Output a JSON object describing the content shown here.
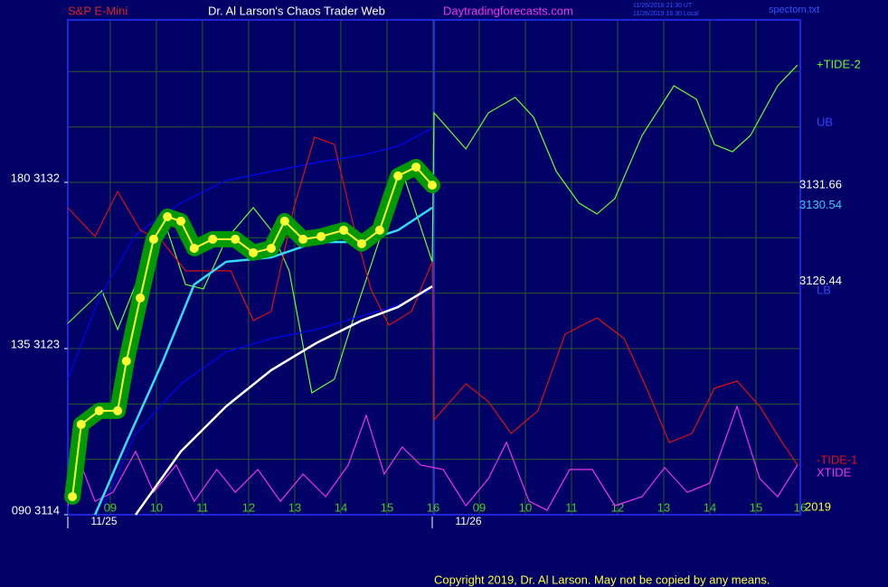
{
  "chart_data": {
    "type": "line",
    "header": {
      "symbol": "S&P E-Mini",
      "title": "Dr. Al Larson's Chaos Trader Web",
      "site": "Daytradingforecasts.com",
      "time_ut": "11/26/2019 21:30 UT",
      "time_local": "11/26/2019 16:30 Local",
      "file": "spectom.txt"
    },
    "footer": "Copyright 2019, Dr. Al Larson. May not be copied by any means.",
    "year": "2019",
    "dates": [
      "11/25",
      "11/26"
    ],
    "xlim": [
      -0.92,
      14.96
    ],
    "xticks": [
      {
        "value": 0,
        "label": "09"
      },
      {
        "value": 1,
        "label": "10"
      },
      {
        "value": 2,
        "label": "11"
      },
      {
        "value": 3,
        "label": "12"
      },
      {
        "value": 4,
        "label": "13"
      },
      {
        "value": 5,
        "label": "14"
      },
      {
        "value": 6,
        "label": "15"
      },
      {
        "value": 7,
        "label": "16"
      },
      {
        "value": 8,
        "label": "09"
      },
      {
        "value": 9,
        "label": "10"
      },
      {
        "value": 10,
        "label": "11"
      },
      {
        "value": 11,
        "label": "12"
      },
      {
        "value": 12,
        "label": "13"
      },
      {
        "value": 13,
        "label": "14"
      },
      {
        "value": 14,
        "label": "15"
      },
      {
        "value": 14.96,
        "label": "16"
      }
    ],
    "ylim": [
      3114,
      3140.8
    ],
    "yticks": [
      {
        "value": 3114,
        "label": "090 3114"
      },
      {
        "value": 3123,
        "label": "135 3123"
      },
      {
        "value": 3132,
        "label": "180 3132"
      }
    ],
    "y_grid": [
      3114,
      3117,
      3120,
      3123,
      3126,
      3129,
      3132,
      3135,
      3138
    ],
    "grid": true,
    "price_labels": [
      {
        "value": 3131.66,
        "color": "#ffffff"
      },
      {
        "value": 3130.54,
        "color": "#33ccff"
      },
      {
        "value": 3126.44,
        "color": "#ffffff"
      }
    ],
    "series": [
      {
        "name": "+TIDE-2",
        "color": "#66ff33",
        "x": [
          -0.92,
          -0.18,
          0.16,
          0.75,
          1.14,
          1.63,
          2.02,
          2.51,
          3.1,
          3.49,
          3.88,
          4.37,
          4.86,
          5.35,
          5.84,
          6.33,
          6.98,
          7.02,
          7.71,
          8.2,
          8.78,
          9.18,
          9.67,
          10.16,
          10.55,
          10.94,
          11.53,
          12.22,
          12.71,
          13.1,
          13.49,
          13.88,
          14.47,
          14.9
        ],
        "values": [
          3124.37,
          3126.13,
          3124.03,
          3127.7,
          3130.14,
          3126.47,
          3126.23,
          3128.92,
          3130.63,
          3129.41,
          3127.21,
          3120.6,
          3121.34,
          3125.25,
          3128.92,
          3132.59,
          3127.7,
          3135.77,
          3133.81,
          3135.77,
          3136.6,
          3135.52,
          3132.59,
          3130.88,
          3130.29,
          3131.12,
          3134.54,
          3137.23,
          3136.5,
          3134.05,
          3133.66,
          3134.54,
          3137.23,
          3138.36
        ]
      },
      {
        "name": "UB",
        "color": "#0000ff",
        "x": [
          -0.92,
          -0.24,
          0.55,
          1.53,
          2.51,
          3.49,
          4.47,
          5.45,
          6.24,
          6.98
        ],
        "values": [
          3121.34,
          3125.74,
          3129.16,
          3130.88,
          3132.1,
          3132.59,
          3133.08,
          3133.47,
          3133.96,
          3134.93
        ]
      },
      {
        "name": "LB",
        "color": "#0000ff",
        "x": [
          -0.14,
          0.55,
          1.53,
          2.51,
          3.49,
          4.47,
          5.45,
          6.24,
          6.98
        ],
        "values": [
          3114.49,
          3118.4,
          3121.09,
          3122.81,
          3123.54,
          3124.03,
          3124.76,
          3125.35,
          3126.23
        ]
      },
      {
        "name": "-TIDE-1",
        "color": "#dd1111",
        "x": [
          -0.92,
          -0.33,
          0.16,
          0.65,
          1.14,
          1.63,
          2.12,
          2.61,
          3.1,
          3.49,
          3.98,
          4.43,
          4.86,
          5.25,
          5.65,
          6.04,
          6.53,
          6.98,
          7.02,
          7.71,
          8.2,
          8.69,
          9.27,
          9.86,
          10.55,
          11.14,
          11.63,
          12.12,
          12.61,
          13.1,
          13.59,
          14.08,
          14.57,
          14.9
        ],
        "values": [
          3130.63,
          3129.07,
          3131.51,
          3129.41,
          3128.77,
          3127.21,
          3127.21,
          3127.21,
          3124.52,
          3125.01,
          3130.63,
          3134.45,
          3134.05,
          3129.9,
          3126.23,
          3124.27,
          3125.01,
          3127.7,
          3119.14,
          3121.09,
          3120.12,
          3118.4,
          3119.63,
          3123.78,
          3124.66,
          3123.54,
          3120.85,
          3117.91,
          3118.4,
          3120.85,
          3121.24,
          3119.87,
          3117.91,
          3116.69
        ]
      },
      {
        "name": "XTIDE",
        "color": "#ee33ee",
        "x": [
          -0.92,
          -0.63,
          -0.33,
          0.06,
          0.55,
          0.94,
          1.43,
          1.82,
          2.31,
          2.71,
          3.2,
          3.69,
          4.18,
          4.67,
          5.16,
          5.55,
          5.94,
          6.33,
          6.73,
          7.22,
          7.71,
          8.2,
          8.59,
          9.08,
          9.47,
          9.96,
          10.45,
          10.94,
          11.53,
          12.02,
          12.51,
          13.0,
          13.59,
          14.08,
          14.47,
          14.9
        ],
        "values": [
          3114.49,
          3116.69,
          3114.73,
          3115.22,
          3117.43,
          3115.22,
          3116.69,
          3114.73,
          3116.45,
          3115.22,
          3116.45,
          3114.73,
          3116.2,
          3114.98,
          3116.69,
          3119.38,
          3116.2,
          3117.67,
          3116.69,
          3116.45,
          3114.49,
          3115.96,
          3117.92,
          3114.73,
          3114.25,
          3116.45,
          3116.45,
          3114.49,
          3114.98,
          3116.55,
          3115.22,
          3115.71,
          3119.87,
          3115.96,
          3114.98,
          3116.69
        ]
      },
      {
        "color": "#33ddff",
        "x": [
          -0.33,
          0.35,
          1.14,
          1.82,
          2.51,
          3.49,
          4.47,
          5.45,
          6.24,
          6.98
        ],
        "values": [
          3114.0,
          3117.91,
          3122.32,
          3126.47,
          3127.7,
          3127.94,
          3128.77,
          3128.77,
          3129.41,
          3130.63
        ]
      },
      {
        "color": "#ffffff",
        "x": [
          0.55,
          1.53,
          2.51,
          3.49,
          4.47,
          5.45,
          6.24,
          6.98
        ],
        "values": [
          3114.0,
          3117.43,
          3119.87,
          3121.83,
          3123.3,
          3124.52,
          3125.25,
          3126.37
        ]
      },
      {
        "color": "#ffff33",
        "style": "dots",
        "halo": "#009900",
        "x": [
          -0.82,
          -0.63,
          -0.24,
          0.16,
          0.35,
          0.65,
          0.94,
          1.24,
          1.53,
          1.82,
          2.22,
          2.71,
          3.1,
          3.49,
          3.78,
          4.18,
          4.57,
          5.06,
          5.45,
          5.84,
          6.24,
          6.63,
          6.98
        ],
        "values": [
          3114.98,
          3118.89,
          3119.63,
          3119.63,
          3122.32,
          3125.74,
          3128.92,
          3130.14,
          3129.9,
          3128.43,
          3128.92,
          3128.92,
          3128.19,
          3128.43,
          3129.9,
          3128.92,
          3129.07,
          3129.41,
          3128.68,
          3129.41,
          3132.35,
          3132.83,
          3131.85
        ]
      }
    ]
  }
}
